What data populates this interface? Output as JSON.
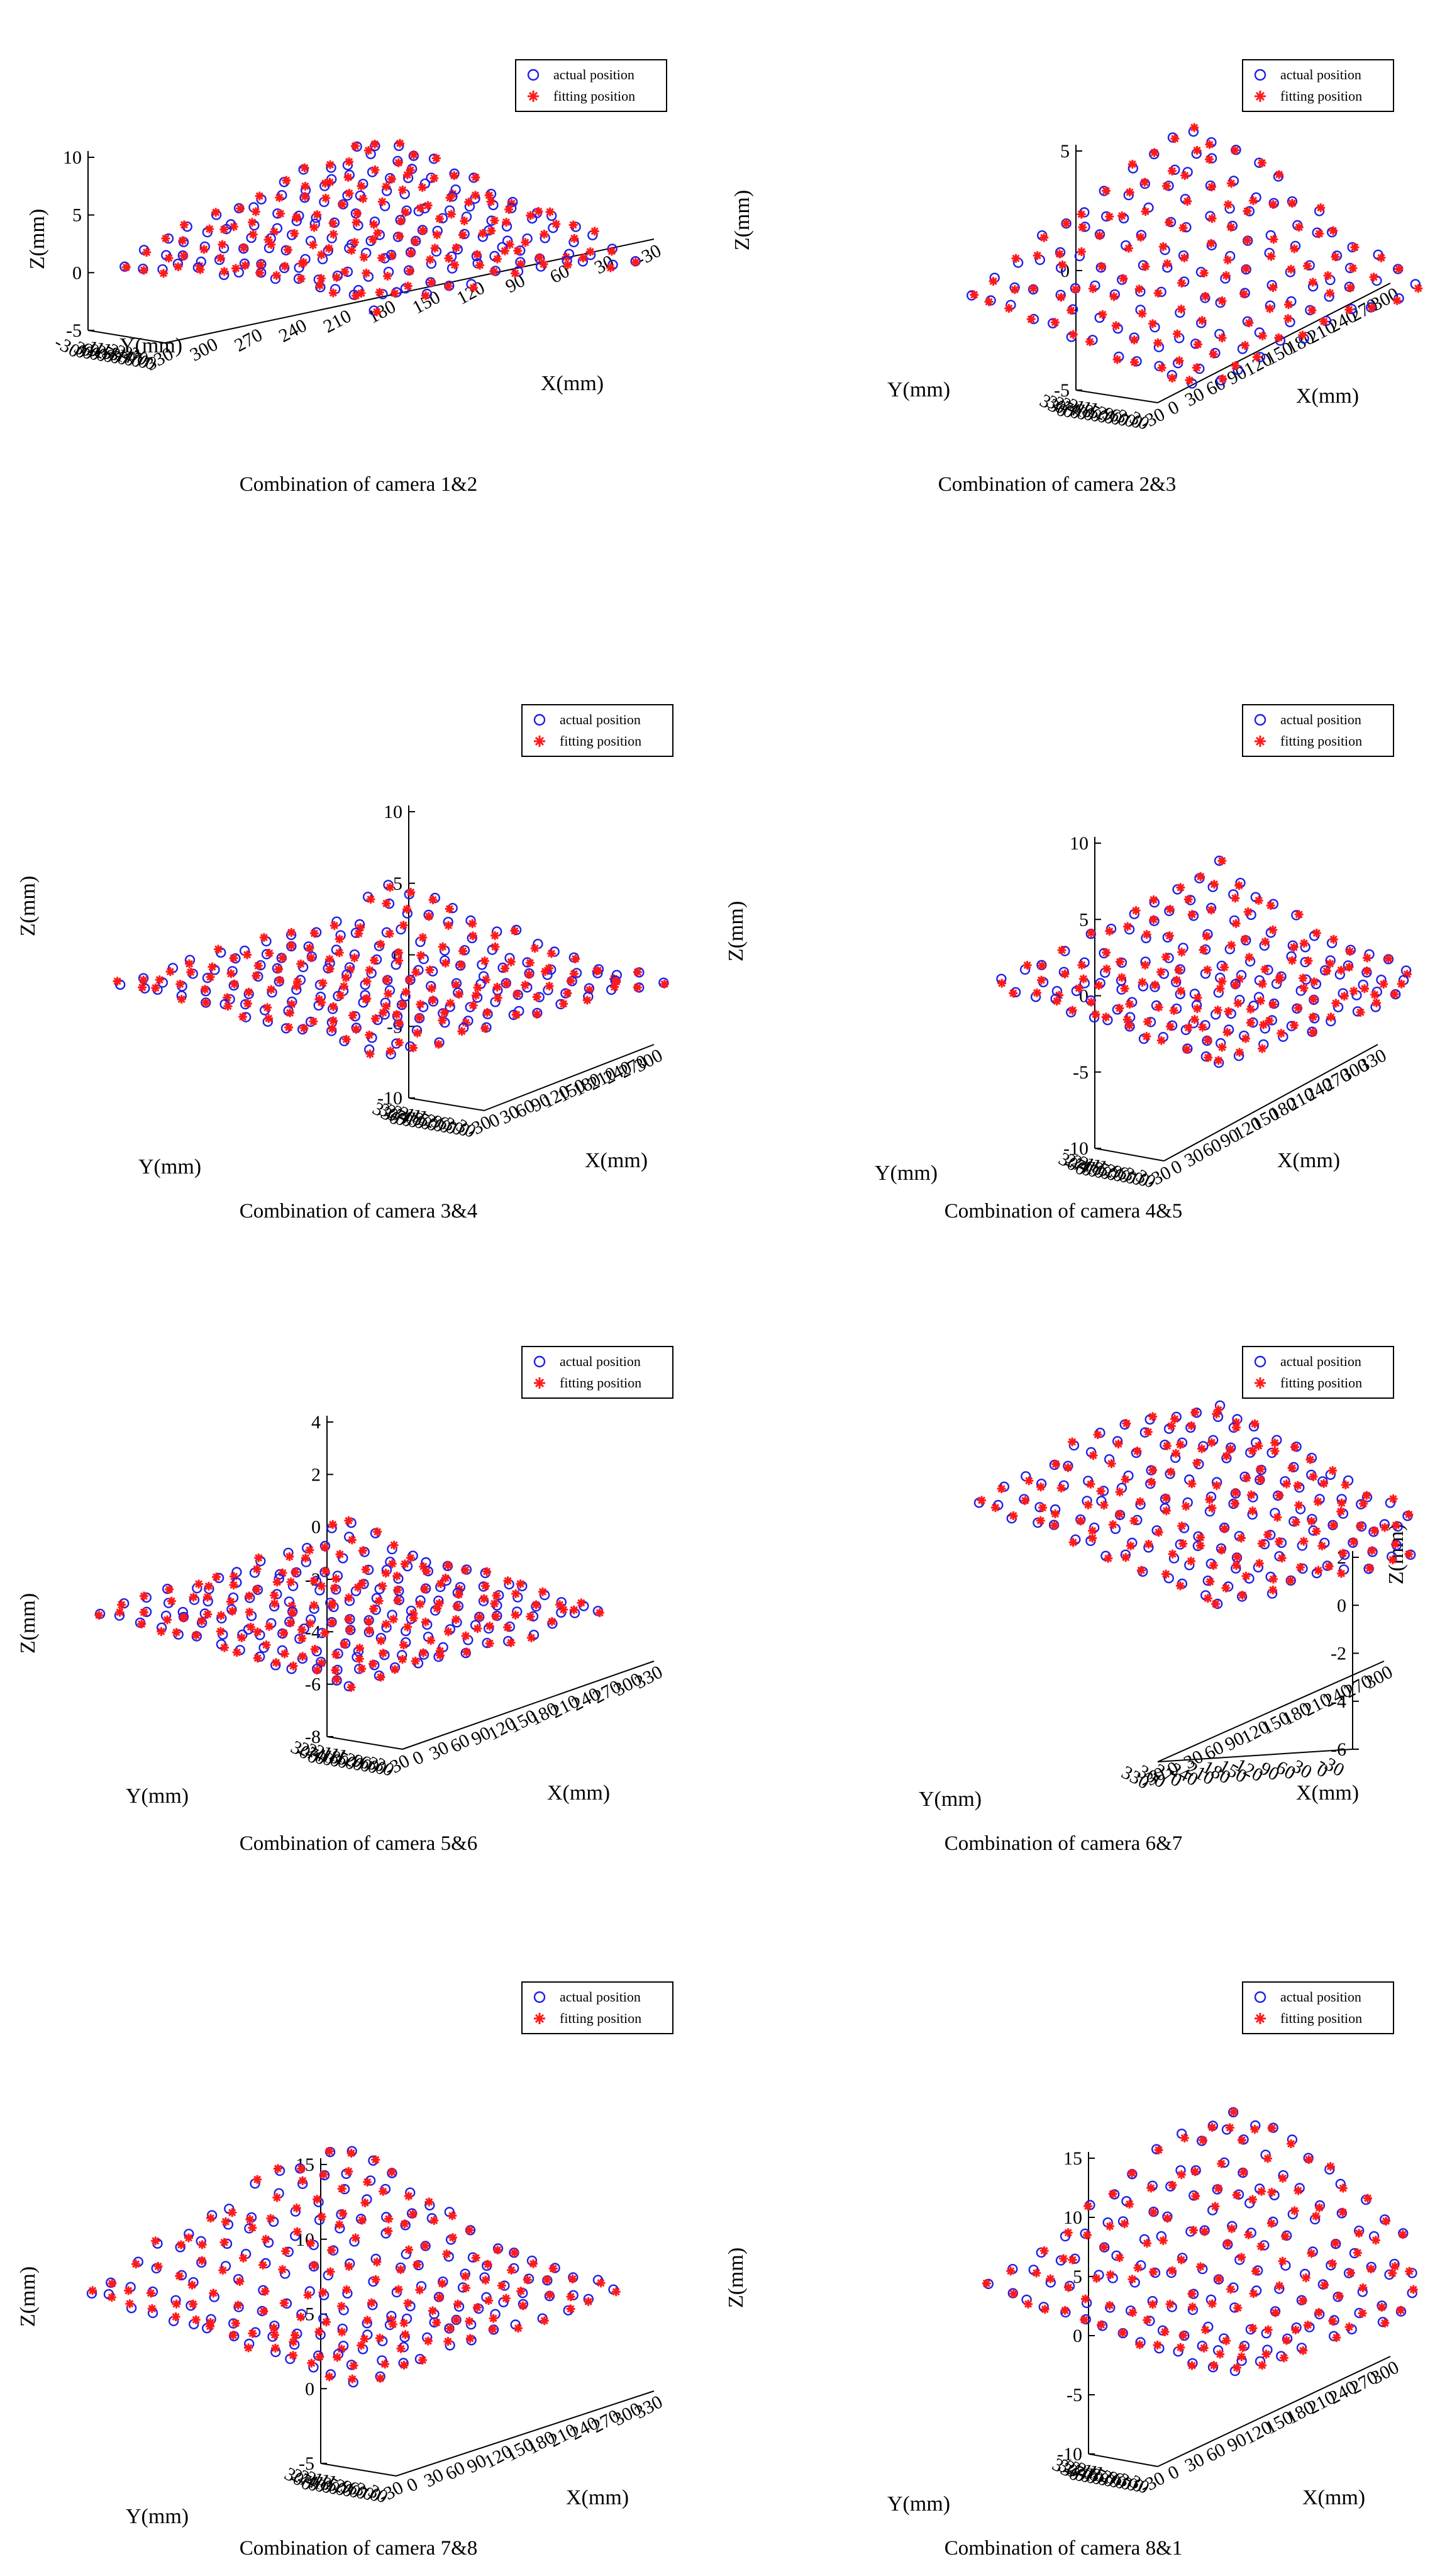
{
  "chart_data": [
    {
      "type": "scatter",
      "variant": "3d",
      "title": "Combination of camera 1&2",
      "xlabel": "X(mm)",
      "ylabel": "Y(mm)",
      "zlabel": "Z(mm)",
      "zlim": [
        -5,
        10
      ],
      "z_ticks": [
        "10",
        "5",
        "0",
        "-5"
      ],
      "x_ticks": [
        "330",
        "300",
        "270",
        "240",
        "210",
        "180",
        "150",
        "120",
        "90",
        "60",
        "30",
        "-30"
      ],
      "y_ticks": [
        "-30",
        "0",
        "30",
        "60",
        "90",
        "120",
        "150",
        "180",
        "210",
        "240",
        "270",
        "300"
      ],
      "grid": false,
      "legend": [
        "actual position",
        "fitting position"
      ],
      "legend_loc": "top-right"
    },
    {
      "type": "scatter",
      "variant": "3d",
      "title": "Combination of camera 2&3",
      "xlabel": "X(mm)",
      "ylabel": "Y(mm)",
      "zlabel": "Z(mm)",
      "zlim": [
        -5,
        5
      ],
      "z_ticks": [
        "5",
        "0",
        "-5"
      ],
      "x_ticks": [
        "-30",
        "0",
        "30",
        "60",
        "90",
        "120",
        "150",
        "180",
        "210",
        "240",
        "270",
        "300"
      ],
      "y_ticks": [
        "330",
        "300",
        "270",
        "240",
        "210",
        "180",
        "150",
        "120",
        "90",
        "60",
        "30",
        "0",
        "-30"
      ],
      "grid": false,
      "legend": [
        "actual position",
        "fitting position"
      ],
      "legend_loc": "top-right"
    },
    {
      "type": "scatter",
      "variant": "3d",
      "title": "Combination of camera 3&4",
      "xlabel": "X(mm)",
      "ylabel": "Y(mm)",
      "zlabel": "Z(mm)",
      "zlim": [
        -10,
        10
      ],
      "z_ticks": [
        "10",
        "5",
        "0",
        "-5",
        "-10"
      ],
      "x_ticks": [
        "-30",
        "0",
        "30",
        "60",
        "90",
        "120",
        "150",
        "180",
        "210",
        "240",
        "270",
        "300"
      ],
      "y_ticks": [
        "330",
        "300",
        "270",
        "240",
        "210",
        "180",
        "150",
        "120",
        "90",
        "60",
        "30",
        "0",
        "-30"
      ],
      "grid": false,
      "legend": [
        "actual position",
        "fitting position"
      ],
      "legend_loc": "top-right"
    },
    {
      "type": "scatter",
      "variant": "3d",
      "title": "Combination of camera 4&5",
      "xlabel": "X(mm)",
      "ylabel": "Y(mm)",
      "zlabel": "Z(mm)",
      "zlim": [
        -10,
        10
      ],
      "z_ticks": [
        "10",
        "5",
        "0",
        "-5",
        "-10"
      ],
      "x_ticks": [
        "-30",
        "0",
        "30",
        "60",
        "90",
        "120",
        "150",
        "180",
        "210",
        "240",
        "270",
        "300",
        "330"
      ],
      "y_ticks": [
        "300",
        "270",
        "240",
        "210",
        "180",
        "150",
        "120",
        "90",
        "60",
        "30",
        "0",
        "-30"
      ],
      "grid": false,
      "legend": [
        "actual position",
        "fitting position"
      ],
      "legend_loc": "top-right"
    },
    {
      "type": "scatter",
      "variant": "3d",
      "title": "Combination of camera 5&6",
      "xlabel": "X(mm)",
      "ylabel": "Y(mm)",
      "zlabel": "Z(mm)",
      "zlim": [
        -8,
        4
      ],
      "z_ticks": [
        "4",
        "2",
        "0",
        "-2",
        "-4",
        "-6",
        "-8"
      ],
      "x_ticks": [
        "-30",
        "0",
        "30",
        "60",
        "90",
        "120",
        "150",
        "180",
        "210",
        "240",
        "270",
        "300",
        "330"
      ],
      "y_ticks": [
        "300",
        "270",
        "240",
        "210",
        "180",
        "150",
        "120",
        "90",
        "60",
        "30",
        "-30"
      ],
      "grid": false,
      "legend": [
        "actual position",
        "fitting position"
      ],
      "legend_loc": "top-right"
    },
    {
      "type": "scatter",
      "variant": "3d",
      "title": "Combination of camera 6&7",
      "xlabel": "X(mm)",
      "ylabel": "Y(mm)",
      "zlabel": "Z(mm)",
      "zlim": [
        -6,
        2
      ],
      "z_ticks": [
        "2",
        "0",
        "-2",
        "-4",
        "-6"
      ],
      "x_ticks": [
        "-30",
        "0",
        "30",
        "60",
        "90",
        "120",
        "150",
        "180",
        "210",
        "240",
        "270",
        "300"
      ],
      "y_ticks": [
        "-30",
        "0",
        "30",
        "60",
        "90",
        "120",
        "150",
        "180",
        "210",
        "240",
        "270",
        "300",
        "330"
      ],
      "grid": false,
      "legend": [
        "actual position",
        "fitting position"
      ],
      "legend_loc": "top-right"
    },
    {
      "type": "scatter",
      "variant": "3d",
      "title": "Combination of camera 7&8",
      "xlabel": "X(mm)",
      "ylabel": "Y(mm)",
      "zlabel": "Z(mm)",
      "zlim": [
        -5,
        15
      ],
      "z_ticks": [
        "15",
        "10",
        "5",
        "0",
        "-5"
      ],
      "x_ticks": [
        "-30",
        "0",
        "30",
        "60",
        "90",
        "120",
        "150",
        "180",
        "210",
        "240",
        "270",
        "300",
        "330"
      ],
      "y_ticks": [
        "300",
        "270",
        "240",
        "210",
        "180",
        "150",
        "120",
        "90",
        "60",
        "30",
        "0",
        "-30"
      ],
      "grid": false,
      "legend": [
        "actual position",
        "fitting position"
      ],
      "legend_loc": "top-right"
    },
    {
      "type": "scatter",
      "variant": "3d",
      "title": "Combination of camera 8&1",
      "xlabel": "X(mm)",
      "ylabel": "Y(mm)",
      "zlabel": "Z(mm)",
      "zlim": [
        -10,
        15
      ],
      "z_ticks": [
        "15",
        "10",
        "5",
        "0",
        "-5",
        "-10"
      ],
      "x_ticks": [
        "-30",
        "0",
        "30",
        "60",
        "90",
        "120",
        "150",
        "180",
        "210",
        "240",
        "270",
        "300"
      ],
      "y_ticks": [
        "330",
        "300",
        "270",
        "240",
        "210",
        "180",
        "150",
        "120",
        "90",
        "60",
        "30",
        "0",
        "-30"
      ],
      "grid": false,
      "legend": [
        "actual position",
        "fitting position"
      ],
      "legend_loc": "top-right"
    }
  ],
  "colors": {
    "actual": "#1f1fe6",
    "fitting": "#ff1a1a",
    "axis": "#000000"
  }
}
